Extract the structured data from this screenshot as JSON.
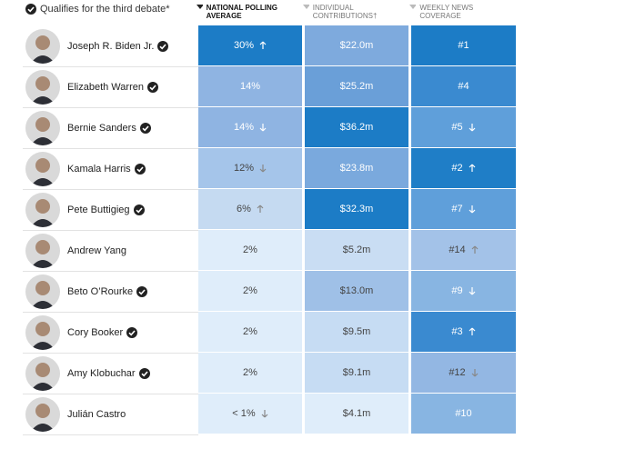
{
  "legend": {
    "text": "Qualifies for the third debate*"
  },
  "columns": [
    {
      "label": "NATIONAL POLLING AVERAGE",
      "sorted": true
    },
    {
      "label": "INDIVIDUAL CONTRIBUTIONS†",
      "sorted": false
    },
    {
      "label": "WEEKLY NEWS COVERAGE",
      "sorted": false
    }
  ],
  "rows": [
    {
      "name": "Joseph R. Biden Jr.",
      "qualifies": true,
      "cells": [
        {
          "text": "30%",
          "trend": "up",
          "color": "#1c7cc6"
        },
        {
          "text": "$22.0m",
          "trend": null,
          "color": "#7eaadd"
        },
        {
          "text": "#1",
          "trend": null,
          "color": "#1c7cc6"
        }
      ]
    },
    {
      "name": "Elizabeth Warren",
      "qualifies": true,
      "cells": [
        {
          "text": "14%",
          "trend": null,
          "color": "#8fb4e2"
        },
        {
          "text": "$25.2m",
          "trend": null,
          "color": "#6a9fd8"
        },
        {
          "text": "#4",
          "trend": null,
          "color": "#3a8ad0"
        }
      ]
    },
    {
      "name": "Bernie Sanders",
      "qualifies": true,
      "cells": [
        {
          "text": "14%",
          "trend": "down",
          "color": "#8fb4e2"
        },
        {
          "text": "$36.2m",
          "trend": null,
          "color": "#1c7cc6"
        },
        {
          "text": "#5",
          "trend": "down",
          "color": "#5f9fda"
        }
      ]
    },
    {
      "name": "Kamala Harris",
      "qualifies": true,
      "cells": [
        {
          "text": "12%",
          "trend": "down",
          "color": "#a5c5ea"
        },
        {
          "text": "$23.8m",
          "trend": null,
          "color": "#7aa9dd"
        },
        {
          "text": "#2",
          "trend": "up",
          "color": "#1f7ec7"
        }
      ]
    },
    {
      "name": "Pete Buttigieg",
      "qualifies": true,
      "cells": [
        {
          "text": "6%",
          "trend": "up",
          "color": "#c5daf1"
        },
        {
          "text": "$32.3m",
          "trend": null,
          "color": "#1c7cc6"
        },
        {
          "text": "#7",
          "trend": "down",
          "color": "#5f9fda"
        }
      ]
    },
    {
      "name": "Andrew Yang",
      "qualifies": false,
      "cells": [
        {
          "text": "2%",
          "trend": null,
          "color": "#dfedfa"
        },
        {
          "text": "$5.2m",
          "trend": null,
          "color": "#c9ddf3"
        },
        {
          "text": "#14",
          "trend": "up",
          "color": "#a3c2e8"
        }
      ]
    },
    {
      "name": "Beto O’Rourke",
      "qualifies": true,
      "cells": [
        {
          "text": "2%",
          "trend": null,
          "color": "#dfedfa"
        },
        {
          "text": "$13.0m",
          "trend": null,
          "color": "#9fc0e7"
        },
        {
          "text": "#9",
          "trend": "down",
          "color": "#88b5e2"
        }
      ]
    },
    {
      "name": "Cory Booker",
      "qualifies": true,
      "cells": [
        {
          "text": "2%",
          "trend": null,
          "color": "#dfedfa"
        },
        {
          "text": "$9.5m",
          "trend": null,
          "color": "#c6dcf3"
        },
        {
          "text": "#3",
          "trend": "up",
          "color": "#3a8ad0"
        }
      ]
    },
    {
      "name": "Amy Klobuchar",
      "qualifies": true,
      "cells": [
        {
          "text": "2%",
          "trend": null,
          "color": "#dfedfa"
        },
        {
          "text": "$9.1m",
          "trend": null,
          "color": "#c6dcf3"
        },
        {
          "text": "#12",
          "trend": "down",
          "color": "#93b7e3"
        }
      ]
    },
    {
      "name": "Julián Castro",
      "qualifies": false,
      "cells": [
        {
          "text": "< 1%",
          "trend": "down",
          "color": "#dfedfa"
        },
        {
          "text": "$4.1m",
          "trend": null,
          "color": "#dfedfa"
        },
        {
          "text": "#10",
          "trend": null,
          "color": "#88b5e2"
        }
      ]
    }
  ]
}
